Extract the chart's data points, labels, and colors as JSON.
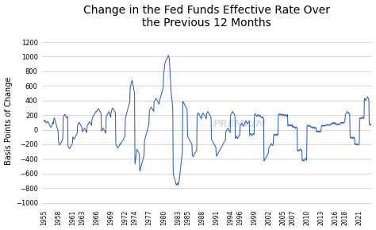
{
  "title": "Change in the Fed Funds Effective Rate Over\nthe Previous 12 Months",
  "ylabel": "Basis Points of Change",
  "line_color": "#2255bb",
  "background_color": "#ffffff",
  "grid_color": "#d0d0d0",
  "ylim": [
    -1050,
    1300
  ],
  "yticks": [
    -1000,
    -800,
    -600,
    -400,
    -200,
    0,
    200,
    400,
    600,
    800,
    1000,
    1200
  ],
  "xtick_years": [
    1955,
    1958,
    1961,
    1963,
    1966,
    1969,
    1972,
    1974,
    1977,
    1980,
    1983,
    1985,
    1988,
    1991,
    1994,
    1996,
    1999,
    2002,
    2005,
    2007,
    2010,
    2013,
    2016,
    2018,
    2021
  ],
  "monthly_data": {
    "start_year": 1955,
    "start_month": 1,
    "values": [
      120,
      110,
      130,
      120,
      115,
      100,
      90,
      100,
      105,
      110,
      115,
      100,
      80,
      70,
      60,
      50,
      40,
      30,
      40,
      50,
      70,
      90,
      100,
      80,
      130,
      150,
      160,
      140,
      120,
      100,
      80,
      60,
      40,
      20,
      0,
      -20,
      -150,
      -180,
      -200,
      -210,
      -200,
      -190,
      -180,
      -170,
      -160,
      -150,
      -140,
      -130,
      170,
      180,
      190,
      200,
      210,
      200,
      190,
      180,
      170,
      160,
      170,
      180,
      -220,
      -230,
      -240,
      -250,
      -260,
      -250,
      -240,
      -230,
      -220,
      -210,
      -200,
      -190,
      -100,
      -110,
      -120,
      -130,
      -120,
      -110,
      -100,
      -90,
      -80,
      -70,
      -60,
      -50,
      60,
      70,
      80,
      90,
      100,
      90,
      80,
      70,
      60,
      50,
      40,
      30,
      -30,
      -20,
      -10,
      0,
      10,
      20,
      10,
      0,
      -10,
      -20,
      -30,
      -40,
      50,
      60,
      70,
      80,
      90,
      100,
      110,
      100,
      90,
      80,
      70,
      60,
      130,
      150,
      170,
      180,
      190,
      200,
      210,
      220,
      230,
      240,
      250,
      240,
      250,
      260,
      270,
      280,
      290,
      280,
      270,
      260,
      250,
      240,
      230,
      220,
      -20,
      -10,
      0,
      10,
      20,
      10,
      0,
      -10,
      -20,
      -30,
      -40,
      -50,
      180,
      190,
      200,
      210,
      220,
      230,
      240,
      250,
      230,
      210,
      190,
      170,
      230,
      250,
      270,
      290,
      300,
      290,
      280,
      270,
      260,
      250,
      240,
      230,
      -200,
      -210,
      -220,
      -230,
      -240,
      -250,
      -240,
      -230,
      -220,
      -210,
      -200,
      -190,
      -200,
      -190,
      -180,
      -170,
      -160,
      -150,
      -140,
      -130,
      -120,
      -110,
      -100,
      -90,
      160,
      180,
      200,
      220,
      240,
      260,
      280,
      300,
      320,
      340,
      360,
      380,
      580,
      600,
      620,
      640,
      660,
      680,
      650,
      620,
      590,
      560,
      530,
      500,
      -470,
      -430,
      -390,
      -350,
      -310,
      -270,
      -280,
      -290,
      -300,
      -310,
      -320,
      -330,
      -570,
      -550,
      -530,
      -510,
      -490,
      -470,
      -450,
      -430,
      -410,
      -390,
      -370,
      -350,
      -150,
      -130,
      -110,
      -90,
      -70,
      -50,
      -30,
      -10,
      10,
      30,
      50,
      70,
      250,
      270,
      280,
      290,
      300,
      310,
      300,
      290,
      280,
      270,
      260,
      250,
      380,
      390,
      400,
      410,
      420,
      430,
      420,
      410,
      400,
      390,
      380,
      370,
      350,
      370,
      400,
      420,
      440,
      460,
      480,
      500,
      520,
      540,
      560,
      580,
      750,
      800,
      850,
      900,
      920,
      940,
      950,
      960,
      970,
      980,
      990,
      1000,
      1020,
      1000,
      980,
      900,
      800,
      700,
      600,
      500,
      450,
      400,
      350,
      280,
      -600,
      -620,
      -640,
      -660,
      -680,
      -700,
      -720,
      -740,
      -760,
      -750,
      -740,
      -730,
      -760,
      -740,
      -720,
      -700,
      -650,
      -600,
      -550,
      -500,
      -450,
      -400,
      -350,
      -300,
      390,
      380,
      370,
      360,
      350,
      340,
      330,
      320,
      310,
      300,
      290,
      280,
      -90,
      -100,
      -110,
      -120,
      -130,
      -140,
      -150,
      -160,
      -170,
      -180,
      -190,
      -200,
      -350,
      -360,
      -370,
      -360,
      -350,
      -340,
      -330,
      -320,
      -310,
      -300,
      -290,
      -280,
      200,
      210,
      220,
      230,
      220,
      210,
      200,
      190,
      180,
      170,
      160,
      150,
      200,
      210,
      220,
      230,
      220,
      210,
      200,
      190,
      180,
      170,
      160,
      150,
      220,
      230,
      240,
      250,
      240,
      230,
      220,
      210,
      200,
      190,
      180,
      170,
      -130,
      -140,
      -150,
      -160,
      -170,
      -180,
      -190,
      -200,
      -210,
      -220,
      -230,
      -240,
      -350,
      -360,
      -350,
      -340,
      -330,
      -320,
      -310,
      -300,
      -290,
      -280,
      -270,
      -260,
      -250,
      -240,
      -230,
      -220,
      -210,
      -200,
      -190,
      -180,
      -170,
      -160,
      -150,
      -140,
      -30,
      -20,
      -10,
      0,
      10,
      20,
      10,
      0,
      -10,
      -20,
      -30,
      -40,
      200,
      210,
      220,
      230,
      240,
      250,
      240,
      230,
      220,
      210,
      200,
      190,
      -120,
      -110,
      -100,
      -90,
      -100,
      -110,
      -120,
      -110,
      -100,
      -90,
      -80,
      -70,
      50,
      60,
      70,
      80,
      90,
      80,
      70,
      60,
      50,
      60,
      70,
      80,
      100,
      110,
      120,
      110,
      100,
      90,
      80,
      90,
      100,
      110,
      120,
      110,
      -80,
      -70,
      -60,
      -50,
      -60,
      -70,
      -80,
      -70,
      -60,
      -50,
      -60,
      -70,
      200,
      210,
      220,
      210,
      200,
      190,
      180,
      190,
      200,
      210,
      200,
      190,
      180,
      190,
      200,
      190,
      180,
      170,
      160,
      170,
      180,
      170,
      160,
      150,
      -430,
      -420,
      -410,
      -400,
      -390,
      -380,
      -370,
      -360,
      -350,
      -340,
      -330,
      -320,
      -250,
      -240,
      -230,
      -220,
      -210,
      -200,
      -190,
      -200,
      -210,
      -220,
      -210,
      -200,
      -80,
      -70,
      -60,
      -70,
      -80,
      -70,
      -60,
      -70,
      -80,
      -70,
      -60,
      -70,
      200,
      210,
      220,
      210,
      200,
      210,
      220,
      210,
      200,
      190,
      200,
      210,
      200,
      210,
      200,
      190,
      200,
      210,
      200,
      190,
      180,
      190,
      200,
      210,
      50,
      60,
      70,
      60,
      50,
      60,
      70,
      60,
      50,
      60,
      70,
      60,
      30,
      40,
      50,
      40,
      30,
      40,
      30,
      20,
      30,
      40,
      30,
      20,
      -290,
      -280,
      -290,
      -280,
      -290,
      -280,
      -270,
      -260,
      -270,
      -280,
      -290,
      -280,
      -430,
      -420,
      -410,
      -420,
      -430,
      -420,
      -410,
      -400,
      -390,
      -400,
      -410,
      -420,
      50,
      60,
      50,
      60,
      50,
      40,
      50,
      60,
      50,
      40,
      30,
      40,
      30,
      40,
      30,
      20,
      30,
      40,
      30,
      20,
      30,
      20,
      30,
      20,
      -30,
      -20,
      -30,
      -20,
      -30,
      -20,
      -30,
      -20,
      -30,
      -20,
      -30,
      -20,
      50,
      60,
      50,
      60,
      50,
      60,
      50,
      60,
      50,
      60,
      50,
      60,
      60,
      70,
      60,
      70,
      60,
      70,
      60,
      70,
      60,
      70,
      60,
      70,
      80,
      90,
      80,
      90,
      80,
      90,
      100,
      90,
      80,
      90,
      100,
      90,
      70,
      80,
      70,
      80,
      70,
      80,
      70,
      80,
      70,
      80,
      70,
      80,
      90,
      100,
      90,
      100,
      90,
      100,
      90,
      100,
      90,
      100,
      110,
      120,
      200,
      210,
      220,
      230,
      240,
      250,
      240,
      230,
      220,
      230,
      220,
      210,
      -100,
      -110,
      -120,
      -110,
      -100,
      -110,
      -120,
      -110,
      -100,
      -110,
      -120,
      -110,
      -200,
      -190,
      -200,
      -210,
      -200,
      -190,
      -200,
      -210,
      -200,
      -210,
      -200,
      -190,
      150,
      160,
      150,
      160,
      150,
      160,
      170,
      180,
      170,
      160,
      150,
      160,
      430,
      420,
      410,
      400,
      410,
      420,
      430,
      440,
      450,
      440,
      430,
      420,
      80,
      70,
      60,
      70,
      80,
      70,
      60,
      70,
      80,
      70,
      80,
      90
    ]
  }
}
